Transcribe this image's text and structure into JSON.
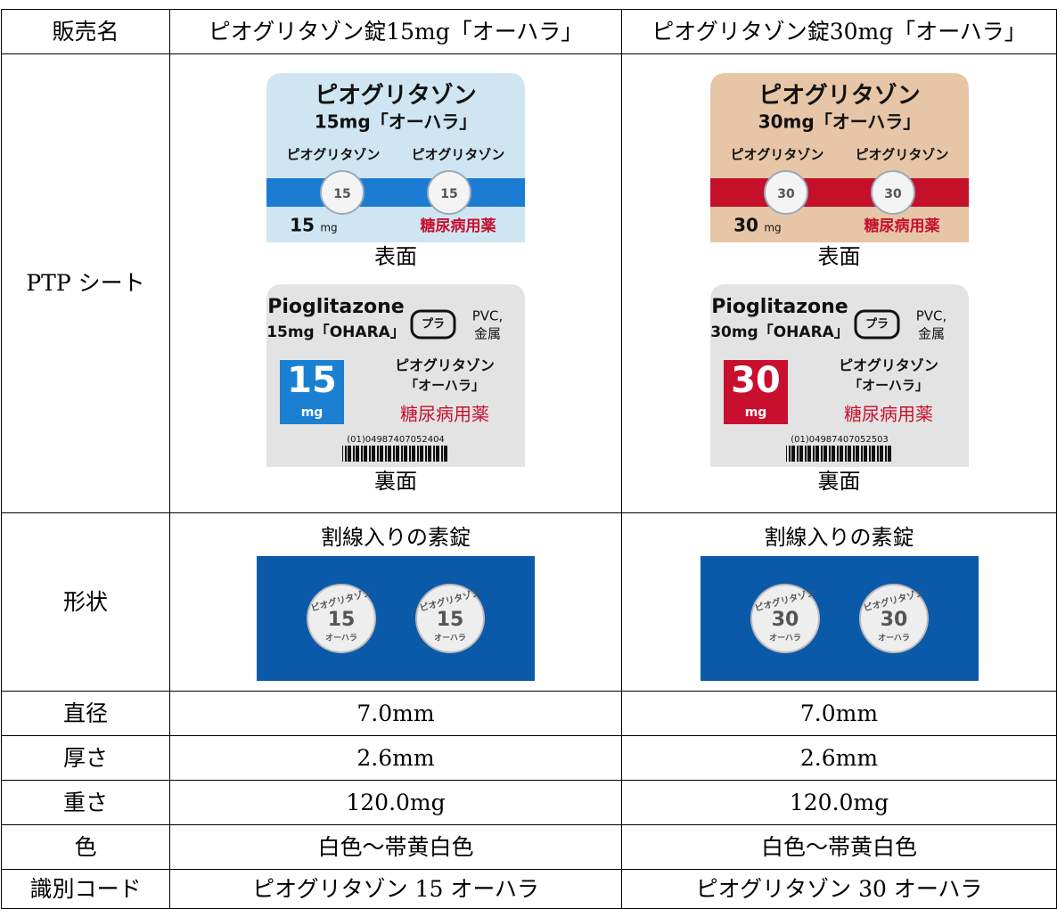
{
  "header": {
    "label": "販売名",
    "products": [
      "ピオグリタゾン錠15mg「オーハラ」",
      "ピオグリタゾン錠30mg「オーハラ」"
    ]
  },
  "ptp": {
    "label": "PTP シート",
    "front_caption": "表面",
    "back_caption": "裏面",
    "sheets": [
      {
        "front": {
          "brand": "ピオグリタゾン",
          "strength": "15mg「オーハラ」",
          "dose": "15",
          "unit": "mg",
          "category": "糖尿病用薬",
          "color": "#cfe6f2",
          "band": "#1c7bd3"
        },
        "back": {
          "name": "Pioglitazone",
          "strength": "15mg「OHARA」",
          "recycle": "プラ",
          "material": "PVC,",
          "material2": "金属",
          "dose": "15",
          "unit": "mg",
          "brand": "ピオグリタゾン",
          "maker": "「オーハラ」",
          "category": "糖尿病用薬",
          "barcode": "(01)04987407052404",
          "color": "#1b80d2"
        }
      },
      {
        "front": {
          "brand": "ピオグリタゾン",
          "strength": "30mg「オーハラ」",
          "dose": "30",
          "unit": "mg",
          "category": "糖尿病用薬",
          "color": "#e6c6a6",
          "band": "#c4102b"
        },
        "back": {
          "name": "Pioglitazone",
          "strength": "30mg「OHARA」",
          "recycle": "プラ",
          "material": "PVC,",
          "material2": "金属",
          "dose": "30",
          "unit": "mg",
          "brand": "ピオグリタゾン",
          "maker": "「オーハラ」",
          "category": "糖尿病用薬",
          "barcode": "(01)04987407052503",
          "color": "#c8102e"
        }
      }
    ]
  },
  "shape": {
    "label": "形状",
    "descriptions": [
      "割線入りの素錠",
      "割線入りの素錠"
    ],
    "tablet_brand": "ピオグリタゾン",
    "tablet_maker": "オーハラ",
    "imprints": [
      "15",
      "30"
    ]
  },
  "specs": [
    {
      "label": "直径",
      "values": [
        "7.0mm",
        "7.0mm"
      ]
    },
    {
      "label": "厚さ",
      "values": [
        "2.6mm",
        "2.6mm"
      ]
    },
    {
      "label": "重さ",
      "values": [
        "120.0mg",
        "120.0mg"
      ]
    },
    {
      "label": "色",
      "values": [
        "白色～帯黄白色",
        "白色～帯黄白色"
      ]
    },
    {
      "label": "識別コード",
      "values": [
        "ピオグリタゾン 15 オーハラ",
        "ピオグリタゾン 30 オーハラ"
      ]
    }
  ]
}
